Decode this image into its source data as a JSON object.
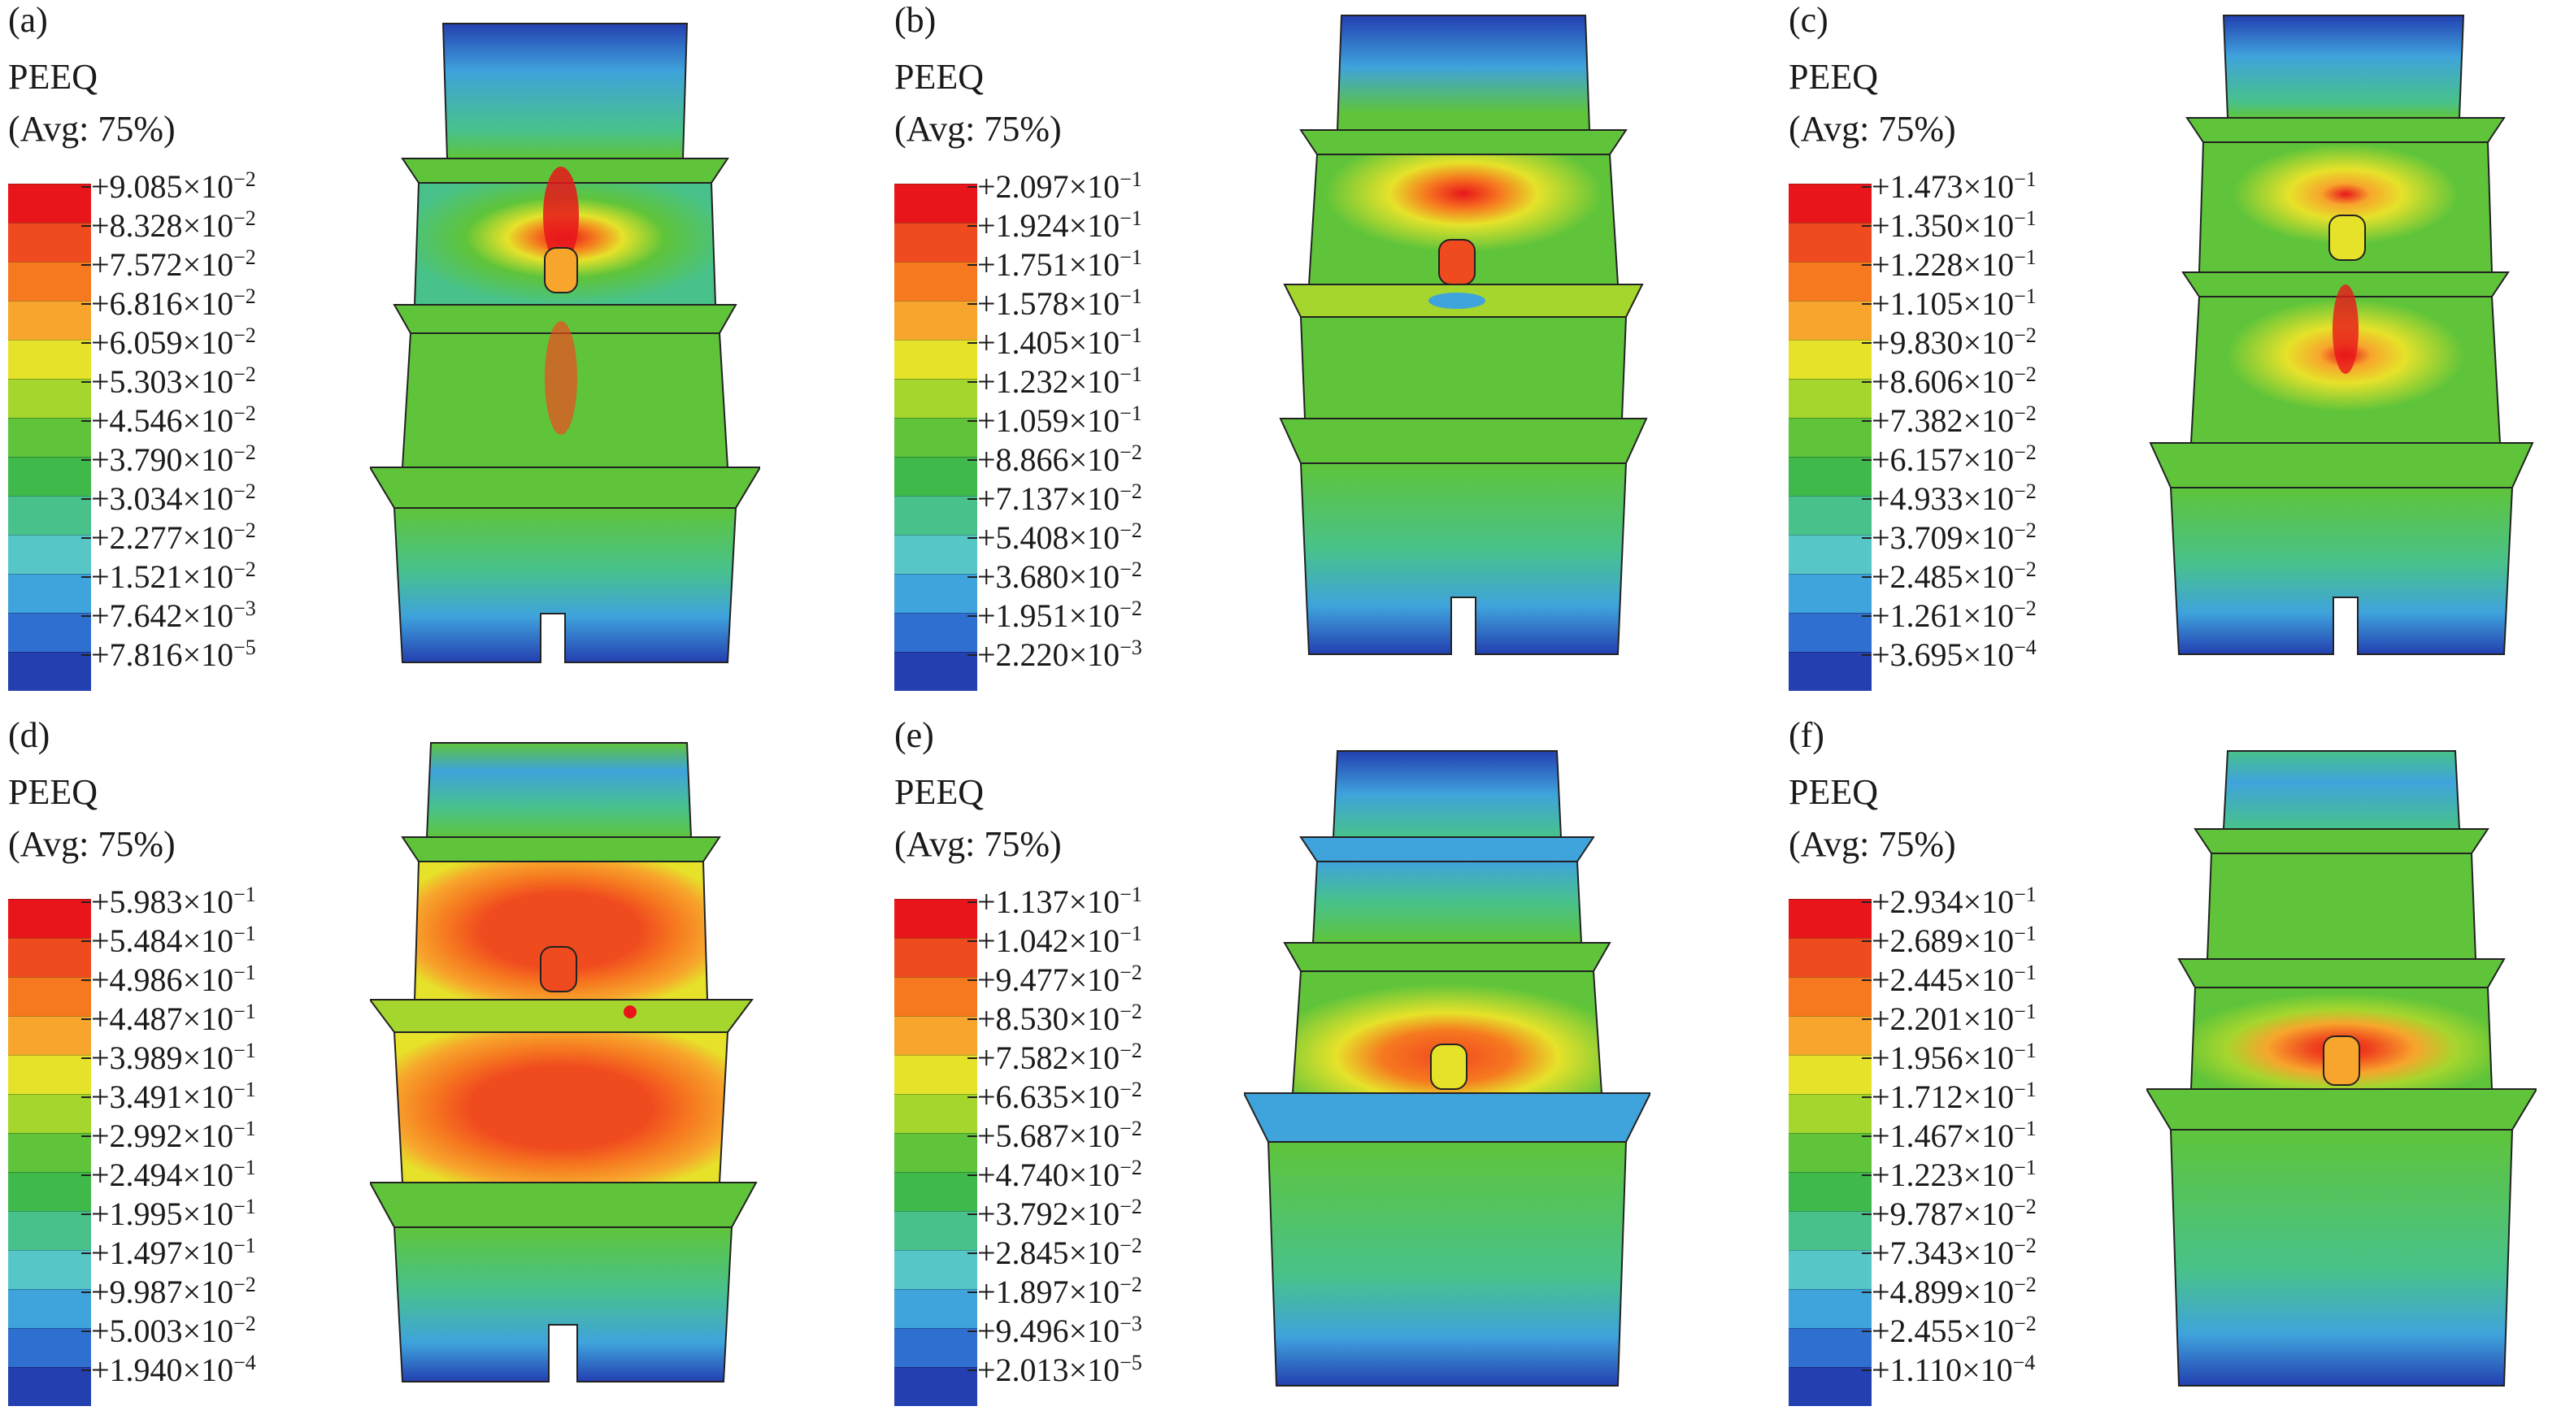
{
  "legend_title": "PEEQ",
  "legend_subtitle": "(Avg: 75%)",
  "palette": [
    "#e8161b",
    "#f04a1f",
    "#f6781f",
    "#f7a52c",
    "#e6e22a",
    "#a5d62e",
    "#5fc43a",
    "#3fba4a",
    "#48c28a",
    "#57c6c6",
    "#3fa3dc",
    "#2f6fd0",
    "#233fb0"
  ],
  "panels": [
    {
      "label": "(a)",
      "ticks": [
        {
          "m": "+9.085",
          "e": "−2"
        },
        {
          "m": "+8.328",
          "e": "−2"
        },
        {
          "m": "+7.572",
          "e": "−2"
        },
        {
          "m": "+6.816",
          "e": "−2"
        },
        {
          "m": "+6.059",
          "e": "−2"
        },
        {
          "m": "+5.303",
          "e": "−2"
        },
        {
          "m": "+4.546",
          "e": "−2"
        },
        {
          "m": "+3.790",
          "e": "−2"
        },
        {
          "m": "+3.034",
          "e": "−2"
        },
        {
          "m": "+2.277",
          "e": "−2"
        },
        {
          "m": "+1.521",
          "e": "−2"
        },
        {
          "m": "+7.642",
          "e": "−3"
        },
        {
          "m": "+7.816",
          "e": "−5"
        }
      ]
    },
    {
      "label": "(b)",
      "ticks": [
        {
          "m": "+2.097",
          "e": "−1"
        },
        {
          "m": "+1.924",
          "e": "−1"
        },
        {
          "m": "+1.751",
          "e": "−1"
        },
        {
          "m": "+1.578",
          "e": "−1"
        },
        {
          "m": "+1.405",
          "e": "−1"
        },
        {
          "m": "+1.232",
          "e": "−1"
        },
        {
          "m": "+1.059",
          "e": "−1"
        },
        {
          "m": "+8.866",
          "e": "−2"
        },
        {
          "m": "+7.137",
          "e": "−2"
        },
        {
          "m": "+5.408",
          "e": "−2"
        },
        {
          "m": "+3.680",
          "e": "−2"
        },
        {
          "m": "+1.951",
          "e": "−2"
        },
        {
          "m": "+2.220",
          "e": "−3"
        }
      ]
    },
    {
      "label": "(c)",
      "ticks": [
        {
          "m": "+1.473",
          "e": "−1"
        },
        {
          "m": "+1.350",
          "e": "−1"
        },
        {
          "m": "+1.228",
          "e": "−1"
        },
        {
          "m": "+1.105",
          "e": "−1"
        },
        {
          "m": "+9.830",
          "e": "−2"
        },
        {
          "m": "+8.606",
          "e": "−2"
        },
        {
          "m": "+7.382",
          "e": "−2"
        },
        {
          "m": "+6.157",
          "e": "−2"
        },
        {
          "m": "+4.933",
          "e": "−2"
        },
        {
          "m": "+3.709",
          "e": "−2"
        },
        {
          "m": "+2.485",
          "e": "−2"
        },
        {
          "m": "+1.261",
          "e": "−2"
        },
        {
          "m": "+3.695",
          "e": "−4"
        }
      ]
    },
    {
      "label": "(d)",
      "ticks": [
        {
          "m": "+5.983",
          "e": "−1"
        },
        {
          "m": "+5.484",
          "e": "−1"
        },
        {
          "m": "+4.986",
          "e": "−1"
        },
        {
          "m": "+4.487",
          "e": "−1"
        },
        {
          "m": "+3.989",
          "e": "−1"
        },
        {
          "m": "+3.491",
          "e": "−1"
        },
        {
          "m": "+2.992",
          "e": "−1"
        },
        {
          "m": "+2.494",
          "e": "−1"
        },
        {
          "m": "+1.995",
          "e": "−1"
        },
        {
          "m": "+1.497",
          "e": "−1"
        },
        {
          "m": "+9.987",
          "e": "−2"
        },
        {
          "m": "+5.003",
          "e": "−2"
        },
        {
          "m": "+1.940",
          "e": "−4"
        }
      ]
    },
    {
      "label": "(e)",
      "ticks": [
        {
          "m": "+1.137",
          "e": "−1"
        },
        {
          "m": "+1.042",
          "e": "−1"
        },
        {
          "m": "+9.477",
          "e": "−2"
        },
        {
          "m": "+8.530",
          "e": "−2"
        },
        {
          "m": "+7.582",
          "e": "−2"
        },
        {
          "m": "+6.635",
          "e": "−2"
        },
        {
          "m": "+5.687",
          "e": "−2"
        },
        {
          "m": "+4.740",
          "e": "−2"
        },
        {
          "m": "+3.792",
          "e": "−2"
        },
        {
          "m": "+2.845",
          "e": "−2"
        },
        {
          "m": "+1.897",
          "e": "−2"
        },
        {
          "m": "+9.496",
          "e": "−3"
        },
        {
          "m": "+2.013",
          "e": "−5"
        }
      ]
    },
    {
      "label": "(f)",
      "ticks": [
        {
          "m": "+2.934",
          "e": "−1"
        },
        {
          "m": "+2.689",
          "e": "−1"
        },
        {
          "m": "+2.445",
          "e": "−1"
        },
        {
          "m": "+2.201",
          "e": "−1"
        },
        {
          "m": "+1.956",
          "e": "−1"
        },
        {
          "m": "+1.712",
          "e": "−1"
        },
        {
          "m": "+1.467",
          "e": "−1"
        },
        {
          "m": "+1.223",
          "e": "−1"
        },
        {
          "m": "+9.787",
          "e": "−2"
        },
        {
          "m": "+7.343",
          "e": "−2"
        },
        {
          "m": "+4.899",
          "e": "−2"
        },
        {
          "m": "+2.455",
          "e": "−2"
        },
        {
          "m": "+1.110",
          "e": "−4"
        }
      ]
    }
  ]
}
